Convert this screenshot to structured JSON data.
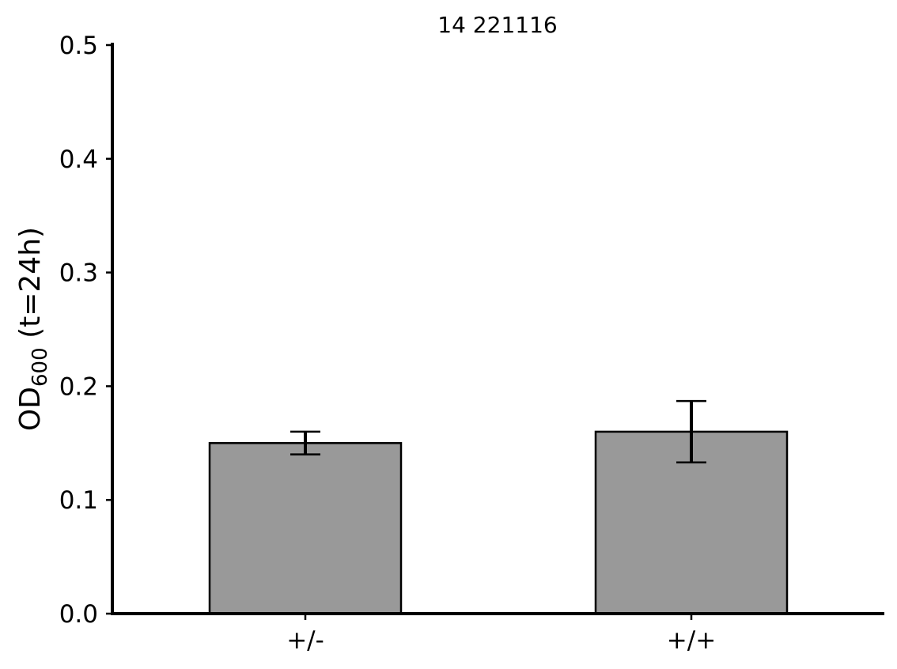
{
  "chart_data": {
    "type": "bar",
    "title": "14 221116",
    "ylabel": {
      "main": "OD",
      "subscript": "600",
      "suffix": " (t=24h)"
    },
    "xlabel": "",
    "categories": [
      "+/-",
      "+/+"
    ],
    "values": [
      0.15,
      0.16
    ],
    "errors": [
      0.01,
      0.027
    ],
    "ylim": [
      0,
      0.5
    ],
    "yticks": [
      0.0,
      0.1,
      0.2,
      0.3,
      0.4,
      0.5
    ],
    "ytick_labels": [
      "0.0",
      "0.1",
      "0.2",
      "0.3",
      "0.4",
      "0.5"
    ],
    "grid": false,
    "bar_color": "#999999",
    "edge_color": "#000000"
  }
}
